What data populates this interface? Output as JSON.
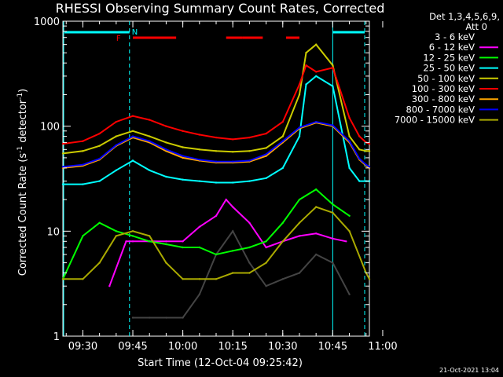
{
  "chart_data": {
    "type": "line",
    "title": "RHESSI Observing Summary Count Rates, Corrected",
    "xlabel": "Start Time (12-Oct-04 09:25:42)",
    "ylabel": "Corrected Count Rate (s⁻¹ detector⁻¹)",
    "ylabel_prefix": "Corrected Count Rate (s",
    "ylabel_mid": " detector",
    "ylabel_sup": "-1",
    "ylabel_close": ")",
    "yscale": "log",
    "ylim": [
      1,
      1000
    ],
    "xlim_minutes_after_0925": [
      -1,
      91
    ],
    "x_ticks": [
      "09:30",
      "09:45",
      "10:00",
      "10:15",
      "10:30",
      "10:45",
      "11:00"
    ],
    "x_tick_minutes": [
      5,
      20,
      35,
      50,
      65,
      80,
      95
    ],
    "y_tick_labels": [
      "1",
      "10",
      "100",
      "1000"
    ],
    "y_tick_values": [
      1,
      10,
      100,
      1000
    ],
    "legend_header": [
      "Det 1,3,4,5,6,9,",
      "Att 0"
    ],
    "flag_labels": {
      "night": "N",
      "flare": "F"
    },
    "flag_colors": {
      "night": "#00ffff",
      "flare": "#ff0000"
    },
    "timestamp": "21-Oct-2021 13:04",
    "series": [
      {
        "name": "3 - 6 keV",
        "color": "#000000",
        "x": [
          20,
          25,
          30,
          35,
          40,
          45,
          50,
          55,
          60,
          65,
          70,
          75,
          80,
          85
        ],
        "y": [
          1.5,
          1.5,
          1.5,
          1.5,
          2.5,
          6,
          10,
          5,
          3,
          3.5,
          4,
          6,
          5,
          2.5
        ]
      },
      {
        "name": "6 - 12 keV",
        "color": "#ff00ff",
        "x": [
          13,
          18,
          20,
          25,
          30,
          35,
          40,
          45,
          48,
          50,
          55,
          60,
          65,
          70,
          75,
          80,
          84
        ],
        "y": [
          3,
          8,
          8,
          8,
          8,
          8,
          11,
          14,
          20,
          17,
          12,
          7,
          8,
          9,
          9.5,
          8.5,
          8
        ]
      },
      {
        "name": "12 - 25 keV",
        "color": "#00ff00",
        "x": [
          -1,
          5,
          10,
          15,
          20,
          25,
          30,
          35,
          40,
          45,
          50,
          55,
          60,
          65,
          70,
          75,
          80,
          85
        ],
        "y": [
          3.5,
          9,
          12,
          10,
          9,
          8,
          7.5,
          7,
          7,
          6,
          6.5,
          7,
          8,
          12,
          20,
          25,
          18,
          14
        ]
      },
      {
        "name": "25 - 50 keV",
        "color": "#00ffff",
        "x": [
          -1,
          5,
          10,
          15,
          20,
          25,
          30,
          35,
          40,
          45,
          50,
          55,
          60,
          65,
          70,
          72,
          75,
          80,
          85,
          88,
          90,
          91
        ],
        "y": [
          28,
          28,
          30,
          38,
          47,
          38,
          33,
          31,
          30,
          29,
          29,
          30,
          32,
          40,
          80,
          250,
          300,
          240,
          40,
          30,
          30,
          30
        ]
      },
      {
        "name": "50 - 100 keV",
        "color": "#cccc00",
        "x": [
          -1,
          5,
          10,
          15,
          20,
          25,
          30,
          35,
          40,
          45,
          50,
          55,
          60,
          65,
          70,
          72,
          75,
          80,
          85,
          88,
          90,
          91
        ],
        "y": [
          55,
          58,
          65,
          80,
          90,
          80,
          70,
          63,
          60,
          58,
          57,
          58,
          62,
          80,
          200,
          500,
          600,
          380,
          80,
          60,
          58,
          58
        ]
      },
      {
        "name": "100 - 300 keV",
        "color": "#ff0000",
        "x": [
          -1,
          5,
          10,
          15,
          20,
          25,
          30,
          35,
          40,
          45,
          50,
          55,
          60,
          65,
          70,
          72,
          75,
          80,
          85,
          88,
          90,
          91
        ],
        "y": [
          68,
          72,
          85,
          110,
          125,
          115,
          100,
          90,
          83,
          78,
          75,
          78,
          85,
          110,
          250,
          380,
          330,
          360,
          120,
          80,
          70,
          68
        ]
      },
      {
        "name": "300 - 800 keV",
        "color": "#ffa500",
        "x": [
          -1,
          5,
          10,
          15,
          20,
          25,
          30,
          35,
          40,
          45,
          50,
          55,
          60,
          65,
          70,
          75,
          80,
          85,
          88,
          90,
          91
        ],
        "y": [
          40,
          42,
          48,
          65,
          78,
          70,
          58,
          50,
          47,
          45,
          45,
          46,
          52,
          70,
          95,
          108,
          100,
          70,
          48,
          42,
          40
        ]
      },
      {
        "name": "800 - 7000 keV",
        "color": "#0000ff",
        "x": [
          -1,
          5,
          10,
          15,
          20,
          25,
          30,
          35,
          40,
          45,
          50,
          55,
          60,
          65,
          70,
          75,
          80,
          85,
          88,
          90,
          91
        ],
        "y": [
          41,
          43,
          49,
          66,
          80,
          72,
          60,
          52,
          48,
          46,
          46,
          47,
          54,
          72,
          97,
          110,
          102,
          72,
          49,
          43,
          41
        ]
      },
      {
        "name": "7000 - 15000 keV",
        "color": "#aaaa00",
        "x": [
          -1,
          5,
          10,
          15,
          20,
          25,
          30,
          35,
          40,
          45,
          50,
          55,
          60,
          65,
          70,
          75,
          80,
          85,
          90,
          91
        ],
        "y": [
          3.5,
          3.5,
          5,
          9,
          10,
          9,
          5,
          3.5,
          3.5,
          3.5,
          4,
          4,
          5,
          8,
          12,
          17,
          15,
          10,
          4,
          3.5
        ]
      }
    ]
  }
}
